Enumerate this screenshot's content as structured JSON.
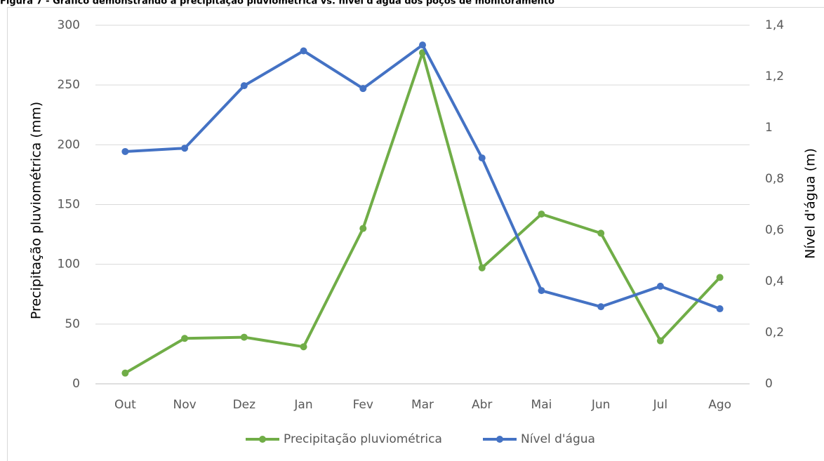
{
  "chart_data": {
    "type": "line",
    "title": "Figura 7 - Gráfico demonstrando a precipitação pluviométrica vs. nível d'água dos poços de monitoramento",
    "categories": [
      "Out",
      "Nov",
      "Dez",
      "Jan",
      "Fev",
      "Mar",
      "Abr",
      "Mai",
      "Jun",
      "Jul",
      "Ago"
    ],
    "series": [
      {
        "name": "Precipitação pluviométrica",
        "color": "#70ad47",
        "values": [
          9,
          38,
          39,
          31,
          130,
          277,
          97,
          142,
          126,
          36,
          89
        ]
      },
      {
        "name": "Nível d'água",
        "color": "#4472c4",
        "axis": "y2",
        "values": [
          0.907,
          0.92,
          1.164,
          1.3,
          1.153,
          1.323,
          0.882,
          0.364,
          0.301,
          0.381,
          0.293
        ]
      }
    ],
    "ylabel": "Precipitação pluviométrica (mm)",
    "y2label": "Nível d'água (m)",
    "ylim": [
      0,
      300
    ],
    "yticks": [
      0,
      50,
      100,
      150,
      200,
      250,
      300
    ],
    "y2lim": [
      0,
      1.4
    ],
    "y2ticks": [
      0,
      {
        "value": 0.2,
        "label": "0,2"
      },
      {
        "value": 0.4,
        "label": "0,4"
      },
      {
        "value": 0.6,
        "label": "0,6"
      },
      {
        "value": 0.8,
        "label": "0,8"
      },
      {
        "value": 1,
        "label": "1"
      },
      {
        "value": 1.2,
        "label": "1,2"
      },
      {
        "value": 1.4,
        "label": "1,4"
      }
    ],
    "grid": true,
    "legend": "bottom"
  }
}
